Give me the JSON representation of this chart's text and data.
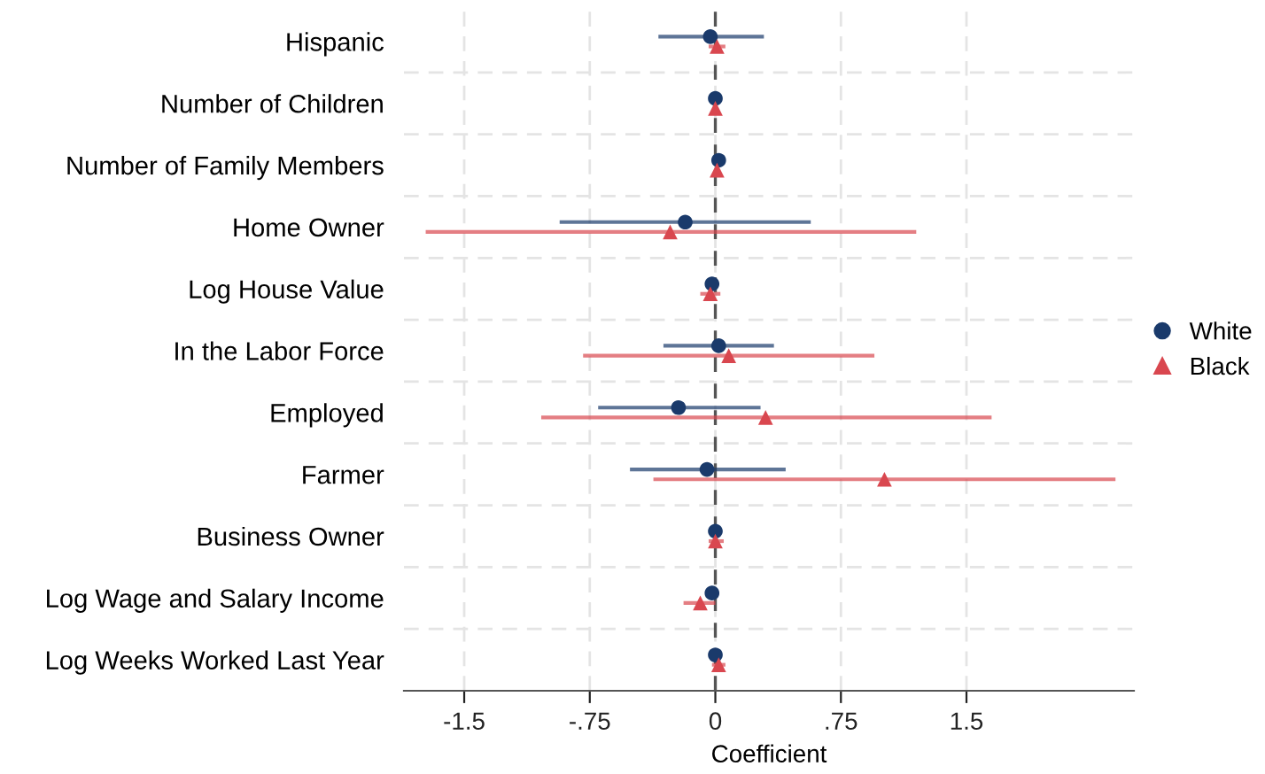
{
  "chart_data": {
    "type": "scatter",
    "xlabel": "Coefficient",
    "orientation": "horizontal",
    "categories": [
      "Hispanic",
      "Number of Children",
      "Number of Family Members",
      "Home Owner",
      "Log House Value",
      "In the Labor Force",
      "Employed",
      "Farmer",
      "Business Owner",
      "Log Wage and Salary Income",
      "Log Weeks Worked Last Year"
    ],
    "series": [
      {
        "name": "White",
        "color": "#1a3a6b",
        "marker": "circle",
        "values": [
          -0.03,
          0.0,
          0.02,
          -0.18,
          -0.02,
          0.02,
          -0.22,
          -0.05,
          0.0,
          -0.02,
          0.0
        ],
        "errors": [
          [
            -0.34,
            0.29
          ],
          null,
          null,
          [
            -0.93,
            0.57
          ],
          null,
          [
            -0.31,
            0.35
          ],
          [
            -0.7,
            0.27
          ],
          [
            -0.51,
            0.42
          ],
          null,
          null,
          null
        ]
      },
      {
        "name": "Black",
        "color": "#d9474f",
        "marker": "triangle",
        "values": [
          0.01,
          0.0,
          0.01,
          -0.27,
          -0.03,
          0.08,
          0.3,
          1.01,
          0.0,
          -0.09,
          0.02
        ],
        "errors": [
          [
            -0.04,
            0.06
          ],
          null,
          null,
          [
            -1.73,
            1.2
          ],
          [
            -0.09,
            0.03
          ],
          [
            -0.79,
            0.95
          ],
          [
            -1.04,
            1.65
          ],
          [
            -0.37,
            2.39
          ],
          [
            -0.04,
            0.05
          ],
          [
            -0.19,
            0.0
          ],
          [
            -0.02,
            0.06
          ]
        ]
      }
    ],
    "xlim": [
      -1.86,
      2.5
    ],
    "xticks": [
      {
        "value": -1.5,
        "label": "-1.5"
      },
      {
        "value": -0.75,
        "label": "-.75"
      },
      {
        "value": 0,
        "label": "0"
      },
      {
        "value": 0.75,
        "label": ".75"
      },
      {
        "value": 1.5,
        "label": "1.5"
      }
    ],
    "ref_lines": [
      {
        "axis": "x",
        "value": 0,
        "color": "#555555",
        "line_style": "dashed"
      }
    ],
    "grid": true,
    "legend": "right"
  }
}
